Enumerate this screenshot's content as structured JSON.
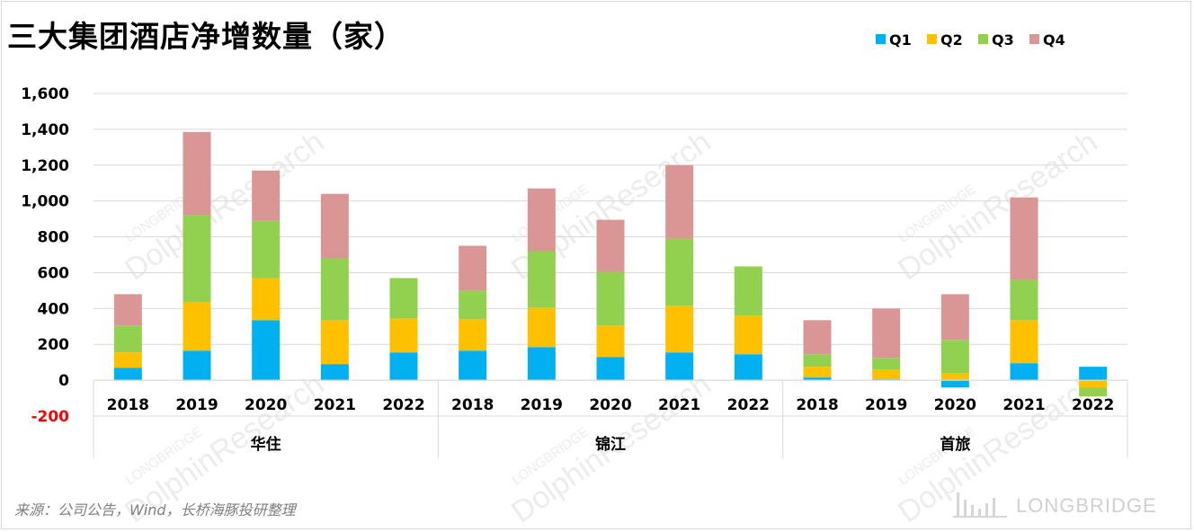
{
  "title": "三大集团酒店净增数量（家）",
  "source": "来源：公司公告，Wind，长桥海豚投研整理",
  "brand": "LONGBRIDGE",
  "watermark": {
    "line1": "LONGBRIDGE",
    "line2": "DolphinResearch"
  },
  "colors": {
    "Q1": "#00B0F0",
    "Q2": "#FFC000",
    "Q3": "#92D050",
    "Q4": "#DA9694",
    "negative_tick": "#FF0000"
  },
  "chart_data": {
    "type": "bar",
    "stacked": true,
    "title": "三大集团酒店净增数量（家）",
    "groups": [
      "华住",
      "锦江",
      "首旅"
    ],
    "years": [
      "2018",
      "2019",
      "2020",
      "2021",
      "2022"
    ],
    "categories": [
      "2018",
      "2019",
      "2020",
      "2021",
      "2022",
      "2018",
      "2019",
      "2020",
      "2021",
      "2022",
      "2018",
      "2019",
      "2020",
      "2021",
      "2022"
    ],
    "series": [
      {
        "name": "Q1",
        "values": [
          70,
          165,
          335,
          90,
          155,
          165,
          185,
          130,
          155,
          145,
          15,
          5,
          -40,
          95,
          75
        ]
      },
      {
        "name": "Q2",
        "values": [
          85,
          270,
          235,
          245,
          190,
          175,
          220,
          175,
          260,
          215,
          60,
          55,
          40,
          240,
          -40
        ]
      },
      {
        "name": "Q3",
        "values": [
          150,
          485,
          320,
          345,
          225,
          160,
          315,
          300,
          375,
          275,
          70,
          65,
          185,
          225,
          -50
        ]
      },
      {
        "name": "Q4",
        "values": [
          175,
          465,
          280,
          360,
          0,
          250,
          350,
          290,
          410,
          0,
          190,
          275,
          255,
          460,
          0
        ]
      }
    ],
    "ylim": [
      -200,
      1600
    ],
    "yticks": [
      "1,600",
      "1,400",
      "1,200",
      "1,000",
      "800",
      "600",
      "400",
      "200",
      "0",
      "-200"
    ],
    "ytick_values": [
      1600,
      1400,
      1200,
      1000,
      800,
      600,
      400,
      200,
      0,
      -200
    ],
    "grid": true,
    "legend": "top-right"
  }
}
